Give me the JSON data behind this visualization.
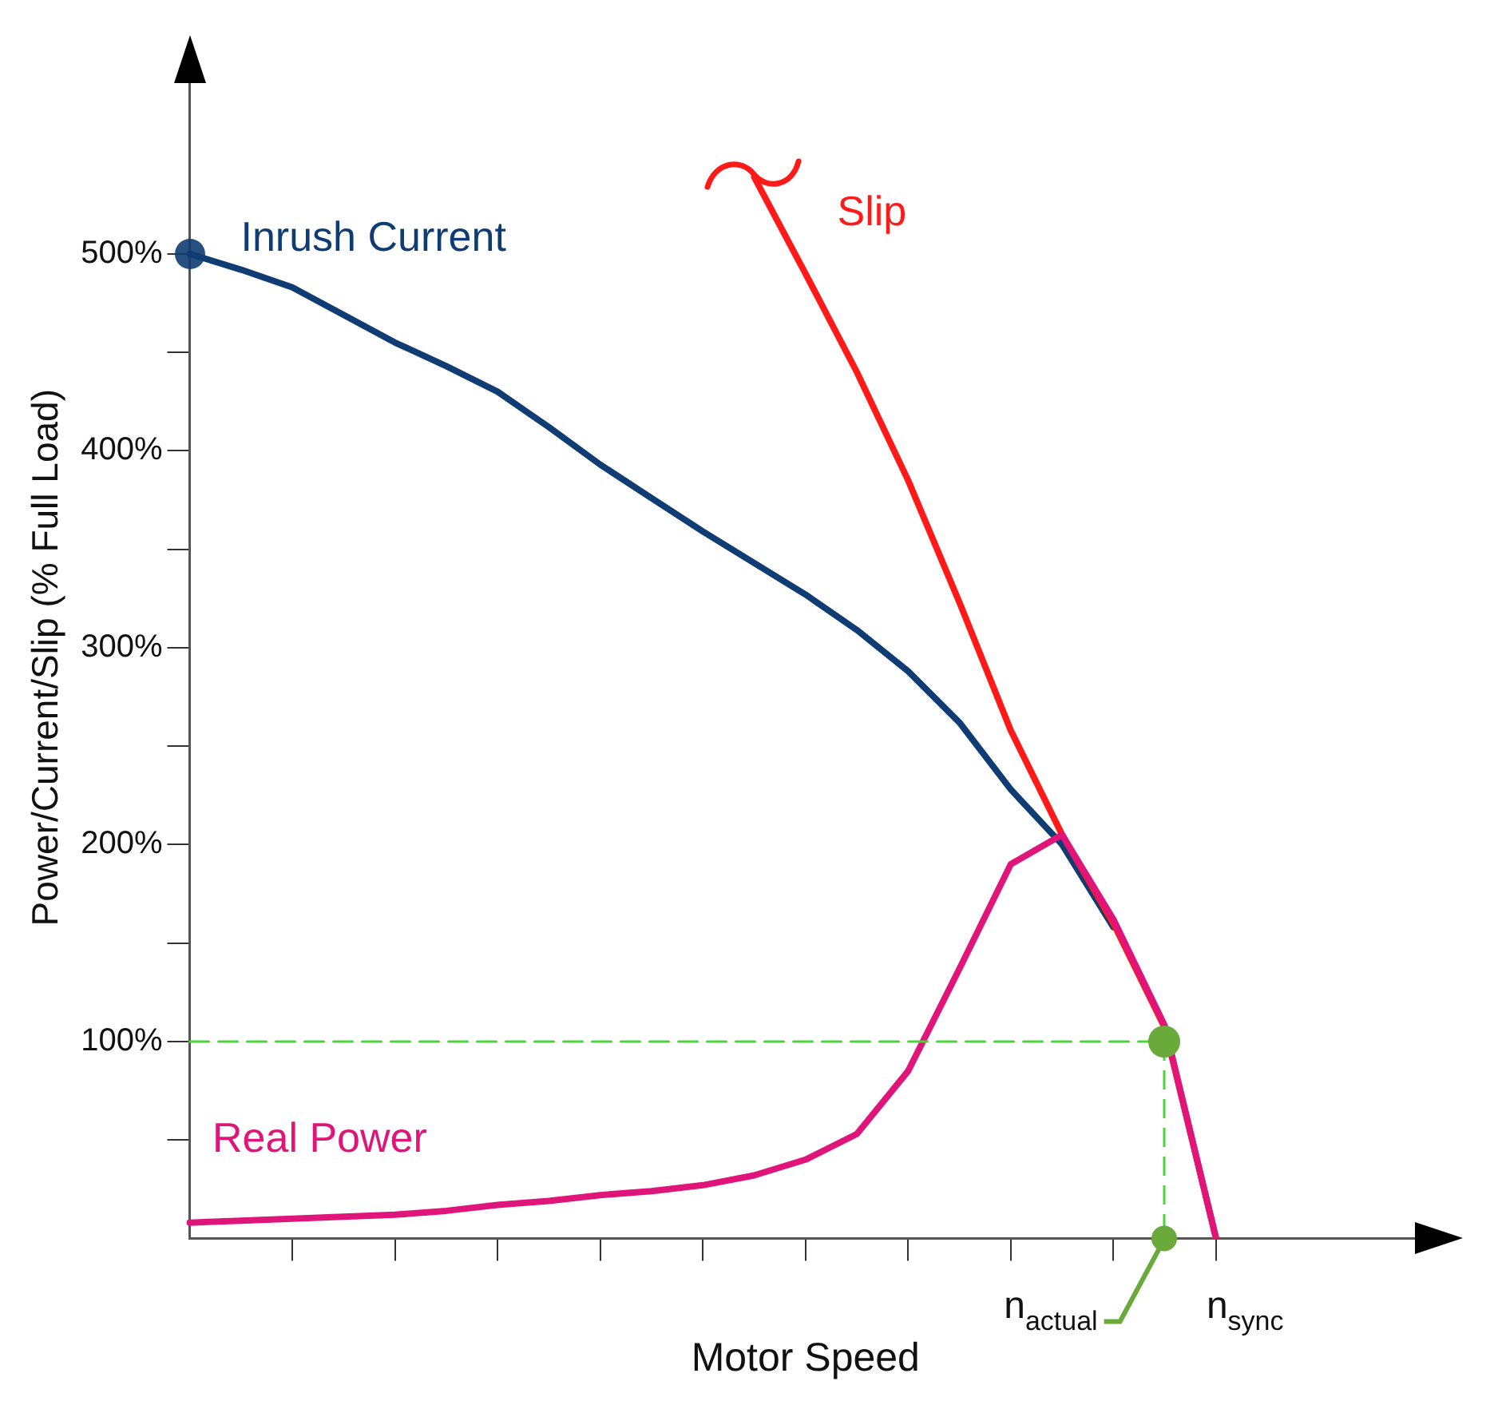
{
  "chart_data": {
    "type": "line",
    "xlabel": "Motor Speed",
    "ylabel": "Power/Current/Slip (% Full Load)",
    "categories": [
      null,
      null,
      null,
      null,
      null,
      null,
      null,
      null,
      null,
      null,
      null,
      null,
      null,
      null,
      null,
      null,
      null,
      null,
      null,
      null,
      null,
      null,
      null,
      null,
      null
    ],
    "ylim": [
      0,
      590
    ],
    "yticks": [
      {
        "value": 50,
        "label": null
      },
      {
        "value": 100,
        "label": "100%"
      },
      {
        "value": 150,
        "label": null
      },
      {
        "value": 200,
        "label": "200%"
      },
      {
        "value": 250,
        "label": null
      },
      {
        "value": 300,
        "label": "300%"
      },
      {
        "value": 350,
        "label": null
      },
      {
        "value": 400,
        "label": "400%"
      },
      {
        "value": 450,
        "label": null
      },
      {
        "value": 500,
        "label": "500%"
      }
    ],
    "grid": false,
    "legend": false,
    "marker": "none",
    "line_style": "solid",
    "annotations": [
      "n$_{actual}$",
      "n$_{sync}$"
    ],
    "series": [
      {
        "name": "Inrush Current",
        "color": "#0f3d73",
        "values": [
          500,
          492,
          483,
          469,
          455,
          443,
          430,
          412,
          393,
          376,
          359,
          343,
          327,
          309,
          288,
          262,
          228,
          200,
          158,
          null,
          null,
          null,
          null,
          null,
          null
        ]
      },
      {
        "name": "Slip",
        "color": "#ff1a1a",
        "values": [
          null,
          null,
          null,
          null,
          null,
          null,
          null,
          null,
          null,
          null,
          null,
          539,
          490,
          440,
          385,
          323,
          258,
          205,
          160,
          107,
          0,
          null,
          null,
          null,
          null
        ]
      },
      {
        "name": "Real Power",
        "color": "#e0157a",
        "values": [
          8,
          9,
          10,
          11,
          12,
          14,
          17,
          19,
          22,
          24,
          27,
          32,
          40,
          53,
          85,
          137,
          190,
          205,
          162,
          108,
          0,
          null,
          null,
          null,
          null
        ]
      },
      {
        "color": "#4cd43c",
        "line_style": "dashed",
        "values": [
          100,
          100,
          100,
          100,
          100,
          100,
          100,
          100,
          100,
          100,
          100,
          100,
          100,
          100,
          100,
          100,
          100,
          100,
          100,
          100,
          null,
          null,
          null,
          null,
          null
        ]
      }
    ]
  }
}
